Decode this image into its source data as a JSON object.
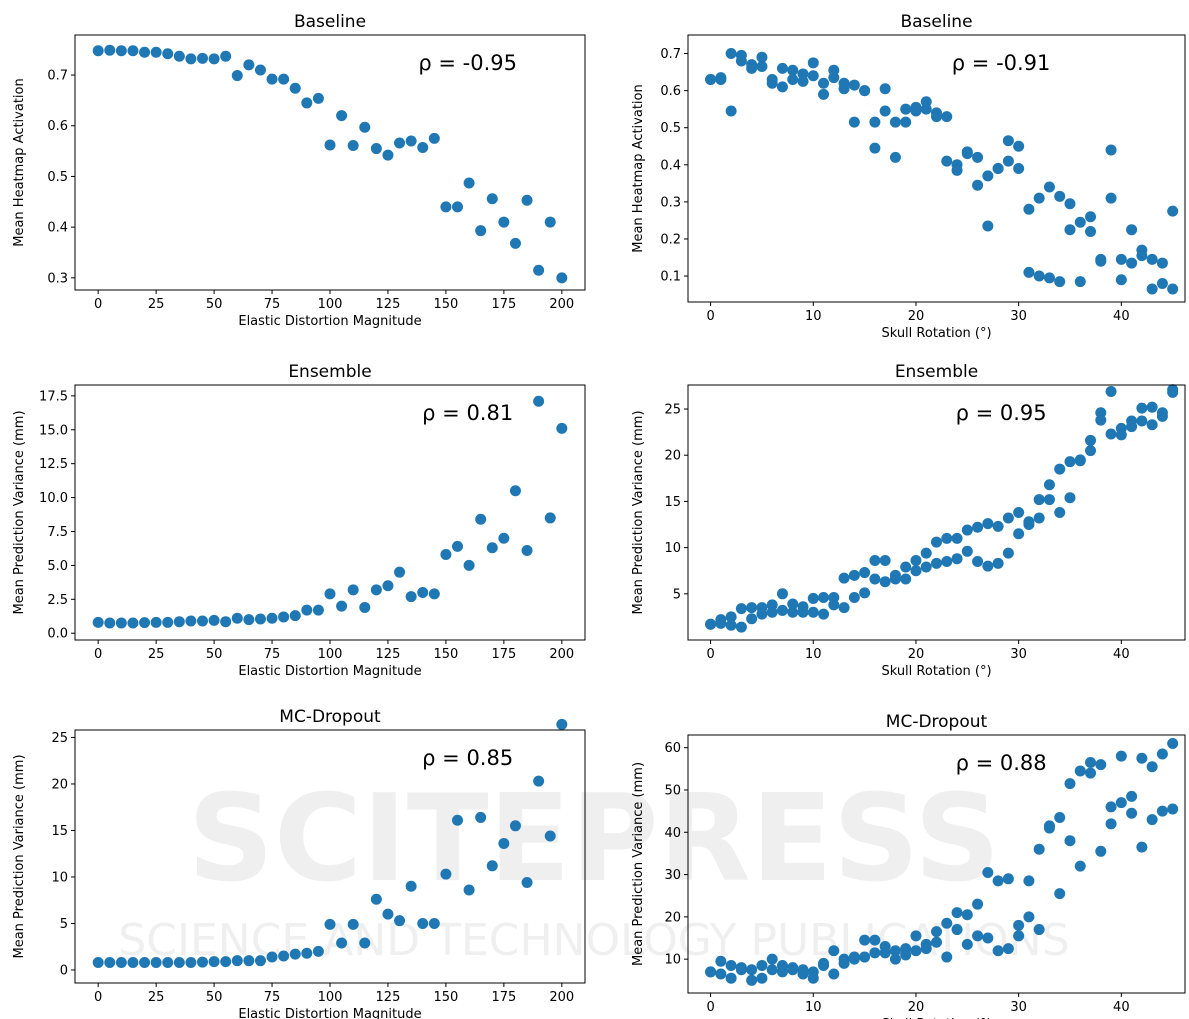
{
  "watermark": [
    "SCITEPRESS",
    "SCIENCE AND TECHNOLOGY PUBLICATIONS"
  ],
  "chart_data": [
    {
      "type": "scatter",
      "title": "Baseline",
      "xlabel": "Elastic Distortion Magnitude",
      "ylabel": "Mean Heatmap Activation",
      "annotation": "ρ = -0.95",
      "color": "#1f77b4",
      "xlim": [
        -10,
        210
      ],
      "xticks": [
        0,
        25,
        50,
        75,
        100,
        125,
        150,
        175,
        200
      ],
      "ylim": [
        0.276,
        0.779
      ],
      "yticks": [
        0.3,
        0.4,
        0.5,
        0.6,
        0.7
      ],
      "x": [
        0,
        5,
        10,
        15,
        20,
        25,
        30,
        35,
        40,
        45,
        50,
        55,
        60,
        65,
        70,
        75,
        80,
        85,
        90,
        95,
        100,
        105,
        110,
        115,
        120,
        125,
        130,
        135,
        140,
        145,
        150,
        155,
        160,
        165,
        170,
        175,
        180,
        185,
        190,
        195,
        200
      ],
      "values": [
        0.748,
        0.749,
        0.748,
        0.748,
        0.745,
        0.745,
        0.742,
        0.737,
        0.732,
        0.733,
        0.732,
        0.737,
        0.699,
        0.72,
        0.71,
        0.692,
        0.692,
        0.674,
        0.645,
        0.654,
        0.562,
        0.62,
        0.561,
        0.597,
        0.555,
        0.542,
        0.566,
        0.57,
        0.557,
        0.575,
        0.44,
        0.44,
        0.487,
        0.393,
        0.456,
        0.41,
        0.368,
        0.453,
        0.315,
        0.41,
        0.3
      ]
    },
    {
      "type": "scatter",
      "title": "Baseline",
      "xlabel": "Skull Rotation (°)",
      "ylabel": "Mean Heatmap Activation",
      "annotation": "ρ = -0.91",
      "color": "#1f77b4",
      "xlim": [
        -2.2,
        46.2
      ],
      "xticks": [
        0,
        10,
        20,
        30,
        40
      ],
      "ylim": [
        0.03,
        0.75
      ],
      "yticks": [
        0.1,
        0.2,
        0.3,
        0.4,
        0.5,
        0.6,
        0.7
      ],
      "x": [
        0,
        0,
        1,
        1,
        2,
        2,
        3,
        3,
        4,
        4,
        5,
        5,
        6,
        6,
        7,
        7,
        8,
        8,
        9,
        9,
        10,
        10,
        11,
        11,
        12,
        12,
        13,
        13,
        14,
        14,
        15,
        15,
        16,
        16,
        17,
        17,
        18,
        18,
        19,
        19,
        20,
        20,
        21,
        21,
        22,
        22,
        23,
        23,
        24,
        24,
        25,
        25,
        26,
        26,
        27,
        27,
        28,
        28,
        29,
        29,
        30,
        30,
        31,
        31,
        32,
        32,
        33,
        33,
        34,
        34,
        35,
        35,
        36,
        36,
        37,
        37,
        38,
        38,
        39,
        39,
        40,
        40,
        41,
        41,
        42,
        42,
        43,
        43,
        44,
        44,
        45,
        45
      ],
      "values": [
        0.63,
        0.63,
        0.63,
        0.635,
        0.7,
        0.545,
        0.695,
        0.68,
        0.67,
        0.66,
        0.69,
        0.665,
        0.63,
        0.62,
        0.66,
        0.61,
        0.655,
        0.63,
        0.645,
        0.625,
        0.675,
        0.64,
        0.62,
        0.59,
        0.655,
        0.635,
        0.62,
        0.605,
        0.615,
        0.515,
        0.6,
        0.6,
        0.515,
        0.445,
        0.605,
        0.545,
        0.515,
        0.42,
        0.55,
        0.515,
        0.555,
        0.545,
        0.57,
        0.55,
        0.54,
        0.53,
        0.53,
        0.41,
        0.4,
        0.385,
        0.435,
        0.43,
        0.42,
        0.345,
        0.37,
        0.235,
        0.39,
        0.39,
        0.465,
        0.41,
        0.45,
        0.39,
        0.28,
        0.11,
        0.31,
        0.1,
        0.34,
        0.095,
        0.315,
        0.085,
        0.295,
        0.225,
        0.245,
        0.085,
        0.26,
        0.22,
        0.145,
        0.14,
        0.44,
        0.31,
        0.145,
        0.09,
        0.225,
        0.135,
        0.17,
        0.155,
        0.145,
        0.065,
        0.135,
        0.08,
        0.275,
        0.065
      ]
    },
    {
      "type": "scatter",
      "title": "Ensemble",
      "xlabel": "Elastic Distortion Magnitude",
      "ylabel": "Mean Prediction Variance (mm)",
      "annotation": "ρ = 0.81",
      "color": "#1f77b4",
      "xlim": [
        -10,
        210
      ],
      "xticks": [
        0,
        25,
        50,
        75,
        100,
        125,
        150,
        175,
        200
      ],
      "ylim": [
        -0.5,
        18.3
      ],
      "yticks": [
        {
          "value": 0,
          "label": "0.0"
        },
        2.5,
        {
          "value": 5,
          "label": "5.0"
        },
        7.5,
        {
          "value": 10,
          "label": "10.0"
        },
        12.5,
        {
          "value": 15,
          "label": "15.0"
        },
        17.5
      ],
      "x": [
        0,
        5,
        10,
        15,
        20,
        25,
        30,
        35,
        40,
        45,
        50,
        55,
        60,
        65,
        70,
        75,
        80,
        85,
        90,
        95,
        100,
        105,
        110,
        115,
        120,
        125,
        130,
        135,
        140,
        145,
        150,
        155,
        160,
        165,
        170,
        175,
        180,
        185,
        190,
        195,
        200
      ],
      "values": [
        0.8,
        0.75,
        0.75,
        0.75,
        0.78,
        0.8,
        0.8,
        0.85,
        0.9,
        0.9,
        0.95,
        0.85,
        1.1,
        1.0,
        1.05,
        1.1,
        1.2,
        1.3,
        1.7,
        1.7,
        2.9,
        2.0,
        3.2,
        1.9,
        3.2,
        3.5,
        4.5,
        2.7,
        3.0,
        2.9,
        5.8,
        6.4,
        5.0,
        8.4,
        6.3,
        7.0,
        10.5,
        6.1,
        17.1,
        8.5,
        15.1
      ]
    },
    {
      "type": "scatter",
      "title": "Ensemble",
      "xlabel": "Skull Rotation (°)",
      "ylabel": "Mean Prediction Variance (mm)",
      "annotation": "ρ = 0.95",
      "color": "#1f77b4",
      "xlim": [
        -2.2,
        46.2
      ],
      "xticks": [
        0,
        10,
        20,
        30,
        40
      ],
      "ylim": [
        0,
        27.6
      ],
      "yticks": [
        5,
        10,
        15,
        20,
        25
      ],
      "x": [
        0,
        0,
        1,
        1,
        2,
        2,
        3,
        3,
        4,
        4,
        5,
        5,
        6,
        6,
        7,
        7,
        8,
        8,
        9,
        9,
        10,
        10,
        11,
        11,
        12,
        12,
        13,
        13,
        14,
        14,
        15,
        15,
        16,
        16,
        17,
        17,
        18,
        18,
        19,
        19,
        20,
        20,
        21,
        21,
        22,
        22,
        23,
        23,
        24,
        24,
        25,
        25,
        26,
        26,
        27,
        27,
        28,
        28,
        29,
        29,
        30,
        30,
        31,
        31,
        32,
        32,
        33,
        33,
        34,
        34,
        35,
        35,
        36,
        36,
        37,
        37,
        38,
        38,
        39,
        39,
        40,
        40,
        41,
        41,
        42,
        42,
        43,
        43,
        44,
        44,
        45,
        45
      ],
      "values": [
        1.7,
        1.7,
        2.2,
        1.8,
        2.5,
        1.6,
        3.4,
        1.4,
        3.5,
        2.3,
        3.5,
        2.8,
        3.8,
        3.0,
        5.0,
        3.2,
        3.9,
        3.0,
        3.6,
        3.0,
        4.5,
        3.0,
        4.6,
        2.8,
        4.6,
        3.8,
        6.7,
        3.5,
        7.0,
        4.6,
        7.3,
        5.1,
        8.6,
        6.6,
        8.6,
        6.3,
        7.0,
        6.6,
        7.9,
        6.6,
        8.6,
        7.5,
        9.4,
        7.9,
        10.6,
        8.3,
        11.0,
        8.5,
        11.0,
        8.8,
        11.9,
        9.6,
        12.2,
        8.5,
        12.6,
        8.0,
        12.3,
        8.3,
        13.2,
        9.4,
        13.8,
        11.5,
        12.8,
        12.5,
        15.2,
        13.2,
        16.8,
        15.2,
        18.5,
        13.8,
        19.3,
        15.4,
        19.5,
        19.4,
        21.6,
        20.5,
        24.6,
        23.8,
        26.9,
        22.3,
        22.9,
        22.2,
        23.7,
        23.1,
        25.1,
        23.7,
        25.2,
        23.3,
        24.6,
        24.2,
        27.1,
        26.8
      ]
    },
    {
      "type": "scatter",
      "title": "MC-Dropout",
      "xlabel": "Elastic Distortion Magnitude",
      "ylabel": "Mean Prediction Variance (mm)",
      "annotation": "ρ = 0.85",
      "color": "#1f77b4",
      "xlim": [
        -10,
        210
      ],
      "xticks": [
        0,
        25,
        50,
        75,
        100,
        125,
        150,
        175,
        200
      ],
      "ylim": [
        -1.4,
        25.8
      ],
      "yticks": [
        0,
        5,
        10,
        15,
        20,
        25
      ],
      "x": [
        0,
        5,
        10,
        15,
        20,
        25,
        30,
        35,
        40,
        45,
        50,
        55,
        60,
        65,
        70,
        75,
        80,
        85,
        90,
        95,
        100,
        105,
        110,
        115,
        120,
        125,
        130,
        135,
        140,
        145,
        150,
        155,
        160,
        165,
        170,
        175,
        180,
        185,
        190,
        195,
        200
      ],
      "values": [
        0.8,
        0.8,
        0.8,
        0.8,
        0.8,
        0.8,
        0.8,
        0.8,
        0.8,
        0.85,
        0.9,
        0.9,
        1.0,
        1.0,
        1.0,
        1.4,
        1.5,
        1.7,
        1.8,
        2.0,
        4.9,
        2.9,
        4.9,
        2.9,
        7.6,
        6.0,
        5.3,
        9.0,
        5.0,
        5.0,
        10.3,
        16.1,
        8.6,
        16.4,
        11.2,
        13.6,
        15.5,
        9.4,
        20.3,
        14.4,
        26.4
      ]
    },
    {
      "type": "scatter",
      "title": "MC-Dropout",
      "xlabel": "Skull Rotation (°)",
      "ylabel": "Mean Prediction Variance (mm)",
      "annotation": "ρ = 0.88",
      "color": "#1f77b4",
      "xlim": [
        -2.2,
        46.2
      ],
      "xticks": [
        0,
        10,
        20,
        30,
        40
      ],
      "ylim": [
        2,
        63
      ],
      "yticks": [
        10,
        20,
        30,
        40,
        50,
        60
      ],
      "x": [
        0,
        0,
        1,
        1,
        2,
        2,
        3,
        3,
        4,
        4,
        5,
        5,
        6,
        6,
        7,
        7,
        8,
        8,
        9,
        9,
        10,
        10,
        11,
        11,
        12,
        12,
        13,
        13,
        14,
        14,
        15,
        15,
        16,
        16,
        17,
        17,
        18,
        18,
        19,
        19,
        20,
        20,
        21,
        21,
        22,
        22,
        23,
        23,
        24,
        24,
        25,
        25,
        26,
        26,
        27,
        27,
        28,
        28,
        29,
        29,
        30,
        30,
        31,
        31,
        32,
        32,
        33,
        33,
        34,
        34,
        35,
        35,
        36,
        36,
        37,
        37,
        38,
        38,
        39,
        39,
        40,
        40,
        41,
        41,
        42,
        42,
        43,
        43,
        44,
        44,
        45,
        45
      ],
      "values": [
        7.0,
        7.0,
        9.5,
        6.5,
        8.5,
        5.5,
        8.0,
        7.5,
        7.5,
        5.0,
        8.5,
        5.5,
        10.0,
        7.5,
        8.5,
        7.0,
        8.0,
        7.5,
        7.5,
        6.5,
        7.0,
        5.5,
        9.0,
        8.5,
        12.0,
        6.5,
        10.0,
        9.0,
        10.5,
        10.0,
        14.5,
        10.5,
        14.5,
        11.5,
        13.0,
        11.5,
        12.0,
        10.0,
        12.5,
        11.0,
        15.5,
        12.0,
        13.5,
        12.5,
        16.5,
        14.0,
        18.5,
        10.5,
        21.0,
        17.0,
        20.5,
        13.5,
        23.0,
        15.5,
        30.5,
        15.0,
        28.5,
        12.0,
        29.0,
        12.5,
        18.0,
        15.5,
        28.5,
        20.0,
        36.0,
        17.0,
        41.5,
        41.0,
        43.5,
        25.5,
        51.5,
        38.0,
        54.5,
        32.0,
        56.5,
        54.0,
        56.0,
        35.5,
        46.0,
        42.0,
        58.0,
        47.0,
        48.5,
        44.5,
        57.5,
        36.5,
        55.5,
        43.0,
        58.5,
        45.0,
        61.0,
        45.5
      ]
    }
  ]
}
